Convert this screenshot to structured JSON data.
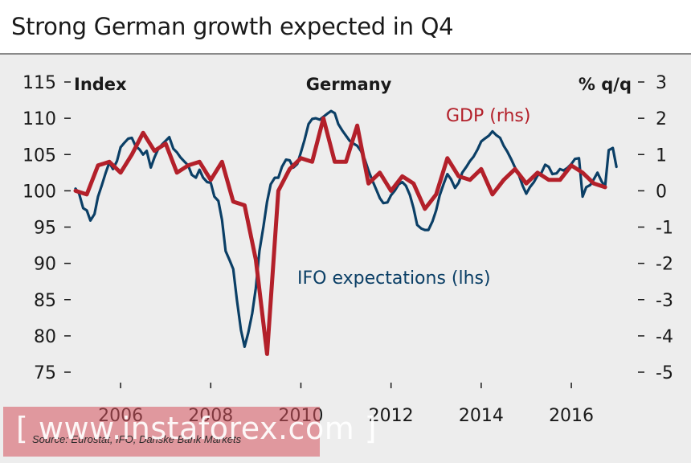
{
  "title": "Strong German growth expected in Q4",
  "source": "Source: Eurostat, IFO, Danske Bank Markets",
  "watermark": "[ www.instaforex.com ]",
  "colors": {
    "ifo": "#0b3f66",
    "gdp": "#b3202a",
    "background": "#ededed"
  },
  "chart_data": {
    "type": "line",
    "title": "Germany",
    "ylabel_left": "Index",
    "ylabel_right": "% q/q",
    "ylim_left": [
      75,
      115
    ],
    "ylim_right": [
      -5,
      3
    ],
    "xlim": [
      2005,
      2017.3
    ],
    "yticks_left": [
      "115",
      "110",
      "105",
      "100",
      "95",
      "90",
      "85",
      "80",
      "75"
    ],
    "yticks_right": [
      "3",
      "2",
      "1",
      "0",
      "-1",
      "-2",
      "-3",
      "-4",
      "-5"
    ],
    "xticks": [
      "2006",
      "2008",
      "2010",
      "2012",
      "2014",
      "2016"
    ],
    "series": [
      {
        "name": "IFO expectations (lhs)",
        "axis": "left",
        "x": [
          2005.0,
          2005.08,
          2005.17,
          2005.25,
          2005.33,
          2005.42,
          2005.5,
          2005.58,
          2005.67,
          2005.75,
          2005.83,
          2005.92,
          2006.0,
          2006.08,
          2006.17,
          2006.25,
          2006.33,
          2006.42,
          2006.5,
          2006.58,
          2006.67,
          2006.75,
          2006.83,
          2006.92,
          2007.0,
          2007.08,
          2007.17,
          2007.25,
          2007.33,
          2007.42,
          2007.5,
          2007.58,
          2007.67,
          2007.75,
          2007.83,
          2007.92,
          2008.0,
          2008.08,
          2008.17,
          2008.25,
          2008.33,
          2008.42,
          2008.5,
          2008.58,
          2008.67,
          2008.75,
          2008.83,
          2008.92,
          2009.0,
          2009.08,
          2009.17,
          2009.25,
          2009.33,
          2009.42,
          2009.5,
          2009.58,
          2009.67,
          2009.75,
          2009.83,
          2009.92,
          2010.0,
          2010.08,
          2010.17,
          2010.25,
          2010.33,
          2010.42,
          2010.5,
          2010.58,
          2010.67,
          2010.75,
          2010.83,
          2010.92,
          2011.0,
          2011.08,
          2011.17,
          2011.25,
          2011.33,
          2011.42,
          2011.5,
          2011.58,
          2011.67,
          2011.75,
          2011.83,
          2011.92,
          2012.0,
          2012.08,
          2012.17,
          2012.25,
          2012.33,
          2012.42,
          2012.5,
          2012.58,
          2012.67,
          2012.75,
          2012.83,
          2012.92,
          2013.0,
          2013.08,
          2013.17,
          2013.25,
          2013.33,
          2013.42,
          2013.5,
          2013.58,
          2013.67,
          2013.75,
          2013.83,
          2013.92,
          2014.0,
          2014.08,
          2014.17,
          2014.25,
          2014.33,
          2014.42,
          2014.5,
          2014.58,
          2014.67,
          2014.75,
          2014.83,
          2014.92,
          2015.0,
          2015.08,
          2015.17,
          2015.25,
          2015.33,
          2015.42,
          2015.5,
          2015.58,
          2015.67,
          2015.75,
          2015.83,
          2015.92,
          2016.0,
          2016.08,
          2016.17,
          2016.25,
          2016.33,
          2016.42,
          2016.5,
          2016.58,
          2016.67,
          2016.75,
          2016.83,
          2016.92,
          2017.0
        ],
        "values": [
          100.3,
          99.6,
          97.6,
          97.3,
          95.9,
          96.8,
          99.2,
          100.7,
          102.5,
          103.9,
          103.0,
          104.1,
          106.0,
          106.6,
          107.2,
          107.3,
          106.2,
          105.7,
          105.0,
          105.5,
          103.2,
          104.6,
          105.7,
          106.4,
          106.9,
          107.4,
          105.8,
          105.3,
          104.6,
          104.0,
          103.5,
          102.2,
          101.8,
          102.9,
          101.8,
          101.2,
          101.1,
          99.2,
          98.6,
          96.0,
          91.7,
          90.4,
          89.2,
          85.0,
          80.8,
          78.5,
          80.4,
          83.1,
          86.6,
          91.7,
          95.1,
          98.5,
          100.9,
          101.8,
          101.8,
          103.3,
          104.3,
          104.2,
          103.2,
          103.7,
          105.3,
          107.0,
          109.2,
          109.9,
          110.0,
          109.8,
          110.2,
          110.6,
          111.0,
          110.7,
          109.2,
          108.3,
          107.6,
          106.9,
          106.5,
          106.2,
          105.5,
          104.3,
          102.8,
          101.5,
          100.2,
          99.0,
          98.3,
          98.4,
          99.4,
          100.0,
          100.9,
          101.2,
          100.7,
          99.4,
          97.6,
          95.3,
          94.8,
          94.6,
          94.6,
          95.8,
          97.3,
          99.4,
          101.0,
          102.3,
          101.6,
          100.4,
          101.1,
          102.5,
          103.3,
          104.1,
          104.7,
          105.7,
          106.8,
          107.2,
          107.6,
          108.2,
          107.7,
          107.3,
          106.2,
          105.4,
          104.3,
          103.2,
          102.3,
          100.7,
          99.6,
          100.5,
          101.2,
          102.1,
          102.4,
          103.6,
          103.3,
          102.3,
          102.4,
          103.0,
          102.8,
          103.2,
          103.7,
          104.4,
          104.5,
          99.2,
          100.5,
          100.8,
          101.6,
          102.5,
          101.3,
          100.6,
          105.6,
          105.9,
          103.3
        ]
      },
      {
        "name": "GDP (rhs)",
        "axis": "right",
        "x": [
          2005.0,
          2005.25,
          2005.5,
          2005.75,
          2006.0,
          2006.25,
          2006.5,
          2006.75,
          2007.0,
          2007.25,
          2007.5,
          2007.75,
          2008.0,
          2008.25,
          2008.5,
          2008.75,
          2009.0,
          2009.25,
          2009.5,
          2009.75,
          2010.0,
          2010.25,
          2010.5,
          2010.75,
          2011.0,
          2011.25,
          2011.5,
          2011.75,
          2012.0,
          2012.25,
          2012.5,
          2012.75,
          2013.0,
          2013.25,
          2013.5,
          2013.75,
          2014.0,
          2014.25,
          2014.5,
          2014.75,
          2015.0,
          2015.25,
          2015.5,
          2015.75,
          2016.0,
          2016.25,
          2016.5,
          2016.75
        ],
        "values": [
          0.0,
          -0.1,
          0.7,
          0.8,
          0.5,
          1.0,
          1.6,
          1.1,
          1.3,
          0.5,
          0.7,
          0.8,
          0.3,
          0.8,
          -0.3,
          -0.4,
          -1.9,
          -4.5,
          0.0,
          0.6,
          0.9,
          0.8,
          2.0,
          0.8,
          0.8,
          1.8,
          0.2,
          0.5,
          0.0,
          0.4,
          0.2,
          -0.5,
          -0.1,
          0.9,
          0.4,
          0.3,
          0.6,
          -0.1,
          0.3,
          0.6,
          0.2,
          0.5,
          0.3,
          0.3,
          0.7,
          0.5,
          0.2,
          0.1
        ]
      }
    ],
    "annotations": [
      "GDP (rhs)",
      "IFO expectations (lhs)"
    ]
  }
}
